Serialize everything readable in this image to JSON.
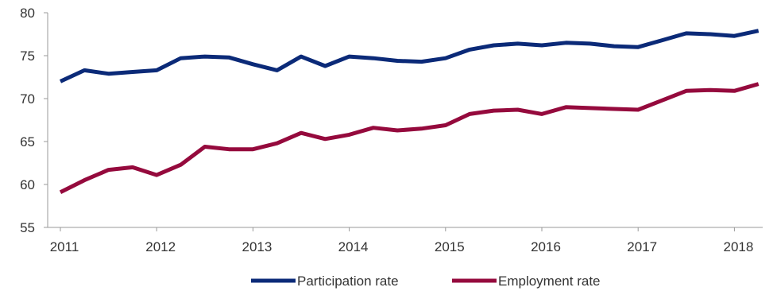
{
  "chart_data": {
    "type": "line",
    "title": "",
    "xlabel": "",
    "ylabel": "",
    "ylim": [
      55,
      80
    ],
    "yticks": [
      55,
      60,
      65,
      70,
      75,
      80
    ],
    "x_tick_labels": [
      "2011",
      "2012",
      "2013",
      "2014",
      "2015",
      "2016",
      "2017",
      "2018"
    ],
    "x": [
      "2011 Q1",
      "2011 Q2",
      "2011 Q3",
      "2011 Q4",
      "2012 Q1",
      "2012 Q2",
      "2012 Q3",
      "2012 Q4",
      "2013 Q1",
      "2013 Q2",
      "2013 Q3",
      "2013 Q4",
      "2014 Q1",
      "2014 Q2",
      "2014 Q3",
      "2014 Q4",
      "2015 Q1",
      "2015 Q2",
      "2015 Q3",
      "2015 Q4",
      "2016 Q1",
      "2016 Q2",
      "2016 Q3",
      "2016 Q4",
      "2017 Q1",
      "2017 Q2",
      "2017 Q3",
      "2017 Q4",
      "2018 Q1",
      "2018 Q2"
    ],
    "grid": false,
    "legend_position": "bottom",
    "series": [
      {
        "name": "Participation rate",
        "color": "#0b2a78",
        "values": [
          72.0,
          73.3,
          72.9,
          73.1,
          73.3,
          74.7,
          74.9,
          74.8,
          74.0,
          73.3,
          74.9,
          73.8,
          74.9,
          74.7,
          74.4,
          74.3,
          74.7,
          75.7,
          76.2,
          76.4,
          76.2,
          76.5,
          76.4,
          76.1,
          76.0,
          76.8,
          77.6,
          77.5,
          77.3,
          77.9
        ]
      },
      {
        "name": "Employment rate",
        "color": "#950a3d",
        "values": [
          59.1,
          60.5,
          61.7,
          62.0,
          61.1,
          62.3,
          64.4,
          64.1,
          64.1,
          64.8,
          66.0,
          65.3,
          65.8,
          66.6,
          66.3,
          66.5,
          66.9,
          68.2,
          68.6,
          68.7,
          68.2,
          69.0,
          68.9,
          68.8,
          68.7,
          69.8,
          70.9,
          71.0,
          70.9,
          71.7
        ]
      }
    ]
  }
}
